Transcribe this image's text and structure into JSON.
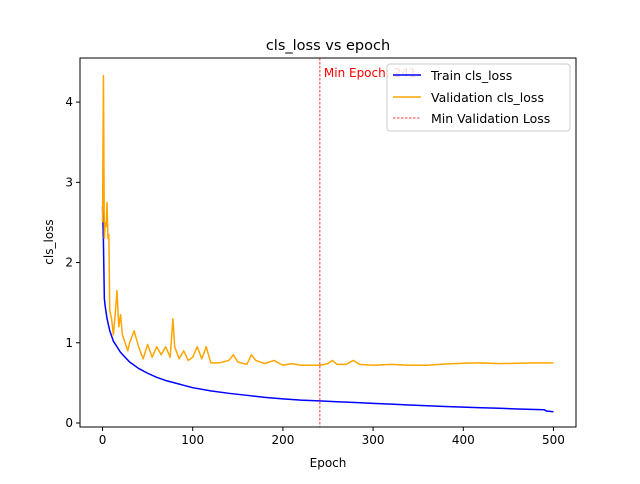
{
  "chart_data": {
    "type": "line",
    "title": "cls_loss vs epoch",
    "xlabel": "Epoch",
    "ylabel": "cls_loss",
    "xlim": [
      -25,
      525
    ],
    "ylim": [
      -0.05,
      4.55
    ],
    "xticks": [
      0,
      100,
      200,
      300,
      400,
      500
    ],
    "yticks": [
      0,
      1,
      2,
      3,
      4
    ],
    "grid": false,
    "legend_position": "top-right",
    "series": [
      {
        "name": "Train cls_loss",
        "color": "#0000ff",
        "points": [
          [
            0,
            2.7
          ],
          [
            1,
            2.25
          ],
          [
            2,
            1.55
          ],
          [
            3,
            1.45
          ],
          [
            5,
            1.3
          ],
          [
            8,
            1.15
          ],
          [
            12,
            1.02
          ],
          [
            16,
            0.95
          ],
          [
            20,
            0.88
          ],
          [
            25,
            0.82
          ],
          [
            30,
            0.76
          ],
          [
            40,
            0.68
          ],
          [
            50,
            0.62
          ],
          [
            60,
            0.57
          ],
          [
            70,
            0.53
          ],
          [
            80,
            0.5
          ],
          [
            90,
            0.47
          ],
          [
            100,
            0.44
          ],
          [
            120,
            0.4
          ],
          [
            140,
            0.37
          ],
          [
            160,
            0.345
          ],
          [
            180,
            0.32
          ],
          [
            200,
            0.3
          ],
          [
            220,
            0.285
          ],
          [
            240,
            0.275
          ],
          [
            260,
            0.265
          ],
          [
            280,
            0.255
          ],
          [
            300,
            0.245
          ],
          [
            320,
            0.235
          ],
          [
            340,
            0.225
          ],
          [
            360,
            0.215
          ],
          [
            380,
            0.205
          ],
          [
            400,
            0.198
          ],
          [
            420,
            0.19
          ],
          [
            440,
            0.183
          ],
          [
            460,
            0.175
          ],
          [
            480,
            0.168
          ],
          [
            490,
            0.165
          ],
          [
            492,
            0.15
          ],
          [
            500,
            0.14
          ]
        ]
      },
      {
        "name": "Validation cls_loss",
        "color": "#ffa500",
        "points": [
          [
            0,
            2.5
          ],
          [
            1,
            4.33
          ],
          [
            2,
            2.3
          ],
          [
            3,
            2.5
          ],
          [
            4,
            2.45
          ],
          [
            5,
            2.75
          ],
          [
            6,
            2.3
          ],
          [
            7,
            2.35
          ],
          [
            8,
            1.4
          ],
          [
            10,
            1.3
          ],
          [
            12,
            1.1
          ],
          [
            14,
            1.35
          ],
          [
            16,
            1.65
          ],
          [
            18,
            1.2
          ],
          [
            20,
            1.35
          ],
          [
            22,
            1.1
          ],
          [
            25,
            1.0
          ],
          [
            28,
            0.9
          ],
          [
            30,
            1.0
          ],
          [
            35,
            1.15
          ],
          [
            40,
            0.95
          ],
          [
            45,
            0.8
          ],
          [
            50,
            0.98
          ],
          [
            55,
            0.82
          ],
          [
            60,
            0.95
          ],
          [
            65,
            0.85
          ],
          [
            70,
            0.95
          ],
          [
            75,
            0.82
          ],
          [
            78,
            1.3
          ],
          [
            80,
            0.95
          ],
          [
            85,
            0.8
          ],
          [
            90,
            0.9
          ],
          [
            95,
            0.78
          ],
          [
            100,
            0.82
          ],
          [
            105,
            0.95
          ],
          [
            110,
            0.8
          ],
          [
            115,
            0.95
          ],
          [
            120,
            0.75
          ],
          [
            130,
            0.75
          ],
          [
            140,
            0.78
          ],
          [
            145,
            0.85
          ],
          [
            150,
            0.76
          ],
          [
            160,
            0.73
          ],
          [
            165,
            0.85
          ],
          [
            170,
            0.78
          ],
          [
            180,
            0.74
          ],
          [
            190,
            0.78
          ],
          [
            200,
            0.72
          ],
          [
            210,
            0.74
          ],
          [
            220,
            0.72
          ],
          [
            230,
            0.72
          ],
          [
            241,
            0.72
          ],
          [
            250,
            0.74
          ],
          [
            255,
            0.78
          ],
          [
            260,
            0.73
          ],
          [
            270,
            0.73
          ],
          [
            278,
            0.78
          ],
          [
            285,
            0.73
          ],
          [
            300,
            0.72
          ],
          [
            320,
            0.73
          ],
          [
            340,
            0.72
          ],
          [
            360,
            0.72
          ],
          [
            380,
            0.735
          ],
          [
            400,
            0.745
          ],
          [
            420,
            0.75
          ],
          [
            440,
            0.74
          ],
          [
            460,
            0.745
          ],
          [
            480,
            0.75
          ],
          [
            500,
            0.75
          ]
        ]
      }
    ],
    "min_line": {
      "name": "Min Validation Loss",
      "x": 241,
      "color": "#ff0000",
      "label": "Min Epoch: 241"
    }
  }
}
